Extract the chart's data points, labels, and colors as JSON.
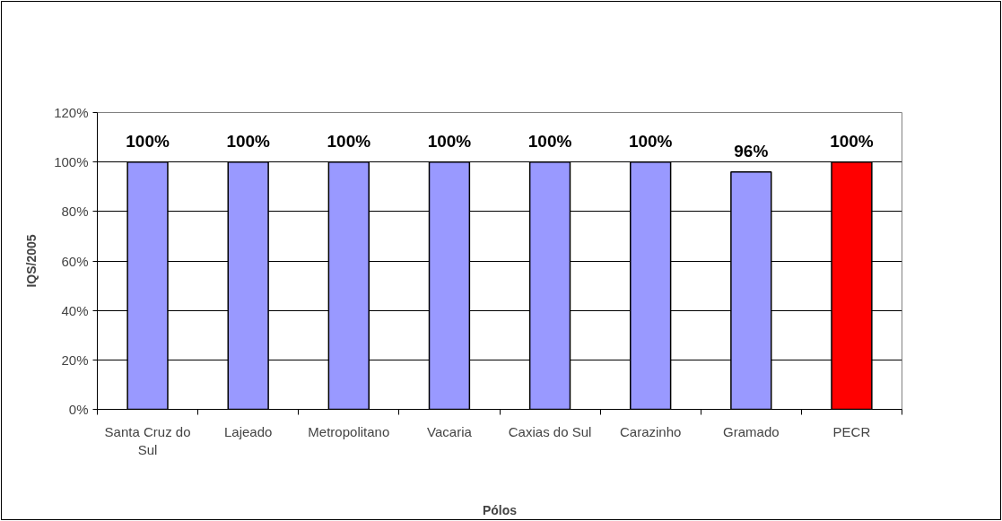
{
  "chart_data": {
    "type": "bar",
    "xlabel": "Pólos",
    "ylabel": "IQS/2005",
    "categories": [
      "Santa Cruz do Sul",
      "Lajeado",
      "Metropolitano",
      "Vacaria",
      "Caxias do Sul",
      "Carazinho",
      "Gramado",
      "PECR"
    ],
    "values": [
      100,
      100,
      100,
      100,
      100,
      100,
      96,
      100
    ],
    "colors": [
      "#9999ff",
      "#9999ff",
      "#9999ff",
      "#9999ff",
      "#9999ff",
      "#9999ff",
      "#9999ff",
      "#ff0000"
    ],
    "value_labels": [
      "100%",
      "100%",
      "100%",
      "100%",
      "100%",
      "100%",
      "96%",
      "100%"
    ],
    "ylim": [
      0,
      120
    ],
    "yticks": [
      {
        "value": 0,
        "label": "0%"
      },
      {
        "value": 20,
        "label": "20%"
      },
      {
        "value": 40,
        "label": "40%"
      },
      {
        "value": 60,
        "label": "60%"
      },
      {
        "value": 80,
        "label": "80%"
      },
      {
        "value": 100,
        "label": "100%"
      },
      {
        "value": 120,
        "label": "120%"
      }
    ],
    "grid": "y"
  }
}
